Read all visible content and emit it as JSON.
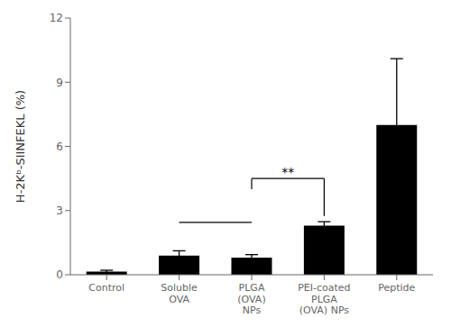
{
  "chart_data": {
    "type": "bar",
    "categories": [
      "Control",
      "Soluble\nOVA",
      "PLGA\n(OVA)\nNPs",
      "PEI-coated\nPLGA\n(OVA) NPs",
      "Peptide"
    ],
    "values": [
      0.15,
      0.9,
      0.8,
      2.3,
      7.0
    ],
    "errors": [
      0.06,
      0.22,
      0.14,
      0.18,
      3.1
    ],
    "color": "#000000",
    "ylabel": "H-2Kᵇ-SIINFEKL (%)",
    "ylim": [
      0,
      12
    ],
    "yticks": [
      0,
      3,
      6,
      9,
      12
    ],
    "grid": false,
    "annotations": [
      {
        "type": "line",
        "from": "Soluble\nOVA",
        "to": "PLGA\n(OVA)\nNPs",
        "y": 2.45
      },
      {
        "type": "bracket",
        "from": "PLGA\n(OVA)\nNPs",
        "to": "PEI-coated\nPLGA\n(OVA) NPs",
        "y_top": 4.5,
        "y_from": 4.0,
        "y_to": 2.75,
        "text": "**",
        "text_y": 4.6
      }
    ]
  }
}
